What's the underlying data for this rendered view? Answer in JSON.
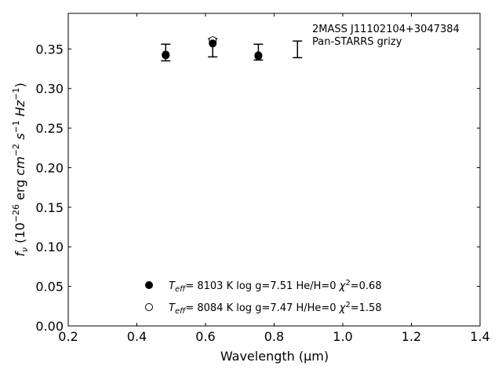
{
  "chart_data": {
    "type": "scatter",
    "annotation": [
      "2MASS J11102104+3047384",
      "Pan-STARRS grizy"
    ],
    "xlabel": "Wavelength (μm)",
    "ylabel": "fν (10⁻²⁶ erg cm⁻² s⁻¹ Hz⁻¹)",
    "xlim": [
      0.2,
      1.4
    ],
    "ylim": [
      0.0,
      0.395
    ],
    "xticks": [
      0.2,
      0.4,
      0.6,
      0.8,
      1.0,
      1.2,
      1.4
    ],
    "yticks": [
      0.0,
      0.05,
      0.1,
      0.15,
      0.2,
      0.25,
      0.3,
      0.35
    ],
    "observed": [
      {
        "x": 0.484,
        "low": 0.335,
        "high": 0.356
      },
      {
        "x": 0.621,
        "low": 0.34,
        "high": 0.363
      },
      {
        "x": 0.754,
        "low": 0.336,
        "high": 0.356
      },
      {
        "x": 0.868,
        "low": 0.339,
        "high": 0.36
      }
    ],
    "series": [
      {
        "name": "T_eff= 8103 K log g=7.51 He/H=0 χ²=0.68",
        "marker": "filled-circle",
        "color": "#000000",
        "points": [
          {
            "x": 0.484,
            "y": 0.342
          },
          {
            "x": 0.621,
            "y": 0.357
          },
          {
            "x": 0.754,
            "y": 0.341
          }
        ]
      },
      {
        "name": "T_eff= 8084 K log g=7.47 H/He=0 χ²=1.58",
        "marker": "open-circle",
        "color": "#000000",
        "points": [
          {
            "x": 0.484,
            "y": 0.343
          },
          {
            "x": 0.621,
            "y": 0.361
          },
          {
            "x": 0.754,
            "y": 0.342
          }
        ]
      }
    ],
    "legend": [
      {
        "teff": "8103",
        "logg": "7.51",
        "comp": "He/H=0",
        "chi2": "0.68"
      },
      {
        "teff": "8084",
        "logg": "7.47",
        "comp": "H/He=0",
        "chi2": "1.58"
      }
    ],
    "legend_placement": "lower-center",
    "grid": false
  }
}
